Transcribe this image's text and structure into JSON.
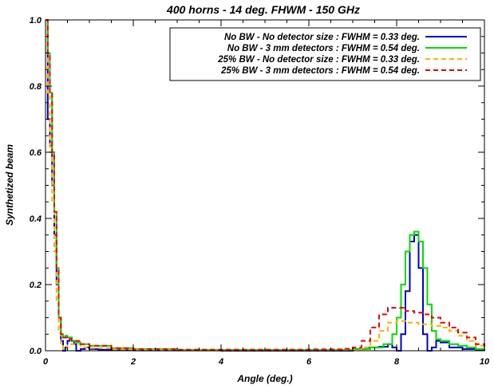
{
  "chart_data": {
    "type": "line",
    "title": "400 horns - 14 deg. FHWM - 150 GHz",
    "xlabel": "Angle (deg.)",
    "ylabel": "Synthetized beam",
    "xlim": [
      0,
      10
    ],
    "ylim": [
      0,
      1
    ],
    "x_ticks": [
      "0",
      "2",
      "4",
      "6",
      "8",
      "10"
    ],
    "y_ticks": [
      "0.0",
      "0.2",
      "0.4",
      "0.6",
      "0.8",
      "1.0"
    ],
    "grid": false,
    "legend_position": "top-right",
    "series": [
      {
        "name": "No BW - No detector size : FWHM = 0.33 deg.",
        "color": "#0000cc",
        "style": "solid",
        "x": [
          0.0,
          0.05,
          0.1,
          0.15,
          0.2,
          0.25,
          0.3,
          0.35,
          0.4,
          0.45,
          0.5,
          0.55,
          0.6,
          0.65,
          0.7,
          0.8,
          0.9,
          1.0,
          1.2,
          1.5,
          2.0,
          3.0,
          4.0,
          5.0,
          6.0,
          6.5,
          7.0,
          7.3,
          7.6,
          7.8,
          7.9,
          8.0,
          8.1,
          8.2,
          8.3,
          8.4,
          8.5,
          8.6,
          8.7,
          8.8,
          8.9,
          9.0,
          9.2,
          9.5,
          9.8,
          10.0
        ],
        "y": [
          1.0,
          0.7,
          0.62,
          0.5,
          0.35,
          0.2,
          0.1,
          0.03,
          0.0,
          0.01,
          0.03,
          0.04,
          0.03,
          0.02,
          0.0,
          0.005,
          0.01,
          0.005,
          0.003,
          0.002,
          0.001,
          0.001,
          0.0,
          0.0,
          0.0,
          0.0,
          0.005,
          0.01,
          0.012,
          0.02,
          0.01,
          0.0,
          0.05,
          0.18,
          0.33,
          0.35,
          0.25,
          0.05,
          0.0,
          0.01,
          0.03,
          0.025,
          0.01,
          0.005,
          0.003,
          0.0
        ]
      },
      {
        "name": "No BW - 3 mm detectors : FWHM = 0.54 deg.",
        "color": "#00dd00",
        "style": "solid",
        "x": [
          0.0,
          0.05,
          0.1,
          0.15,
          0.2,
          0.25,
          0.3,
          0.35,
          0.4,
          0.45,
          0.5,
          0.6,
          0.7,
          0.8,
          1.0,
          1.5,
          2.0,
          3.0,
          4.0,
          5.0,
          6.0,
          7.0,
          7.4,
          7.7,
          7.9,
          8.0,
          8.1,
          8.2,
          8.3,
          8.4,
          8.5,
          8.6,
          8.7,
          8.8,
          8.9,
          9.0,
          9.2,
          9.4,
          9.6,
          9.8,
          10.0
        ],
        "y": [
          1.0,
          0.9,
          0.78,
          0.6,
          0.42,
          0.25,
          0.1,
          0.05,
          0.04,
          0.045,
          0.04,
          0.03,
          0.025,
          0.02,
          0.015,
          0.008,
          0.005,
          0.003,
          0.003,
          0.003,
          0.003,
          0.005,
          0.01,
          0.02,
          0.05,
          0.1,
          0.2,
          0.3,
          0.35,
          0.36,
          0.33,
          0.25,
          0.14,
          0.06,
          0.035,
          0.03,
          0.02,
          0.015,
          0.01,
          0.005,
          0.003
        ]
      },
      {
        "name": "25% BW - No detector size : FWHM = 0.33 deg.",
        "color": "#ffb000",
        "style": "dashed",
        "x": [
          0.0,
          0.05,
          0.1,
          0.15,
          0.2,
          0.25,
          0.3,
          0.35,
          0.4,
          0.5,
          0.6,
          0.8,
          1.0,
          1.5,
          2.0,
          3.0,
          4.0,
          5.0,
          6.0,
          7.0,
          7.2,
          7.4,
          7.6,
          7.8,
          8.0,
          8.2,
          8.5,
          8.8,
          9.0,
          9.2,
          9.4,
          9.6,
          9.8,
          10.0
        ],
        "y": [
          1.0,
          0.78,
          0.6,
          0.45,
          0.3,
          0.15,
          0.06,
          0.02,
          0.005,
          0.02,
          0.02,
          0.01,
          0.008,
          0.004,
          0.002,
          0.001,
          0.001,
          0.001,
          0.001,
          0.002,
          0.01,
          0.03,
          0.06,
          0.085,
          0.09,
          0.085,
          0.08,
          0.075,
          0.07,
          0.06,
          0.045,
          0.03,
          0.015,
          0.003
        ]
      },
      {
        "name": "25% BW - 3 mm detectors : FWHM = 0.54 deg.",
        "color": "#ee0000",
        "style": "dashed",
        "x": [
          0.0,
          0.05,
          0.1,
          0.15,
          0.2,
          0.25,
          0.3,
          0.35,
          0.4,
          0.5,
          0.6,
          0.8,
          1.0,
          1.5,
          2.0,
          3.0,
          4.0,
          5.0,
          6.0,
          6.8,
          7.0,
          7.2,
          7.4,
          7.6,
          7.8,
          8.0,
          8.2,
          8.4,
          8.6,
          8.8,
          9.0,
          9.2,
          9.4,
          9.6,
          9.8,
          10.0
        ],
        "y": [
          1.0,
          0.9,
          0.78,
          0.6,
          0.42,
          0.25,
          0.1,
          0.05,
          0.04,
          0.035,
          0.03,
          0.02,
          0.015,
          0.008,
          0.005,
          0.003,
          0.003,
          0.003,
          0.004,
          0.006,
          0.01,
          0.03,
          0.07,
          0.11,
          0.13,
          0.13,
          0.12,
          0.115,
          0.11,
          0.1,
          0.085,
          0.07,
          0.055,
          0.04,
          0.02,
          0.005
        ]
      }
    ]
  }
}
